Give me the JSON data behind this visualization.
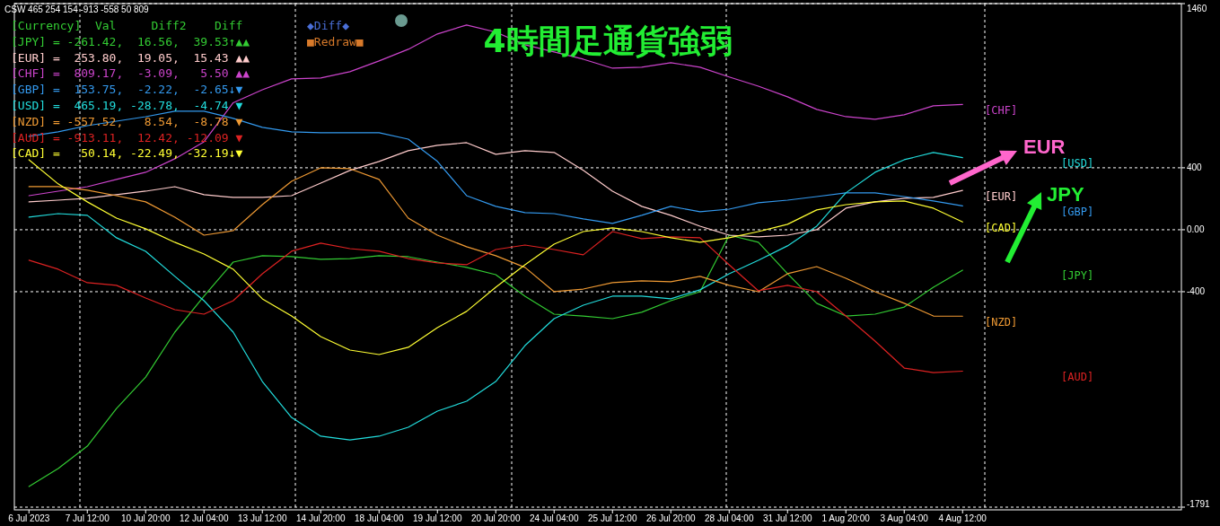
{
  "chart_data": {
    "type": "line",
    "title": "4時間足通貨強弱",
    "categories": [
      "6 Jul 2023",
      null,
      "7 Jul 12:00",
      null,
      "10 Jul 20:00",
      null,
      "12 Jul 04:00",
      null,
      "13 Jul 12:00",
      null,
      "14 Jul 20:00",
      null,
      "18 Jul 04:00",
      null,
      "19 Jul 12:00",
      null,
      "20 Jul 20:00",
      null,
      "24 Jul 04:00",
      null,
      "25 Jul 12:00",
      null,
      "26 Jul 20:00",
      null,
      "28 Jul 04:00",
      null,
      "31 Jul 12:00",
      null,
      "1 Aug 20:00",
      null,
      "3 Aug 04:00",
      null,
      "4 Aug 12:00",
      null,
      null,
      null,
      null,
      null,
      null,
      null
    ],
    "series": [
      {
        "name": "[JPY]",
        "color": "#33cc33",
        "values": [
          -1658,
          -1542,
          -1397,
          -1154,
          -951,
          -661,
          -429,
          -209,
          -168,
          -174,
          -191,
          -186,
          -168,
          -174,
          -209,
          -243,
          -290,
          -429,
          -545,
          -557,
          -574,
          -533,
          -458,
          -400,
          -35,
          -81,
          -284,
          -475,
          -557,
          -545,
          -499,
          -371,
          -261,
          null,
          null,
          null,
          null,
          null,
          null,
          null
        ]
      },
      {
        "name": "[EUR]",
        "color": "#ffcccc",
        "values": [
          180,
          191,
          203,
          226,
          249,
          278,
          226,
          209,
          209,
          220,
          301,
          383,
          441,
          510,
          545,
          562,
          487,
          510,
          499,
          383,
          249,
          151,
          93,
          23,
          -35,
          -46,
          -35,
          0,
          139,
          180,
          203,
          209,
          254,
          null,
          null,
          null,
          null,
          null,
          null,
          null
        ]
      },
      {
        "name": "[CHF]",
        "color": "#cc44cc",
        "values": [
          220,
          249,
          278,
          325,
          371,
          458,
          568,
          820,
          904,
          974,
          980,
          1020,
          1090,
          1165,
          1264,
          1322,
          1276,
          1194,
          1148,
          1101,
          1043,
          1049,
          1078,
          1049,
          986,
          927,
          858,
          777,
          730,
          713,
          742,
          800,
          809,
          null,
          null,
          null,
          null,
          null,
          null,
          null
        ]
      },
      {
        "name": "[GBP]",
        "color": "#3399ee",
        "values": [
          603,
          632,
          672,
          701,
          730,
          765,
          765,
          719,
          661,
          632,
          626,
          626,
          626,
          585,
          441,
          220,
          151,
          110,
          104,
          70,
          41,
          93,
          151,
          116,
          133,
          174,
          191,
          214,
          238,
          238,
          214,
          186,
          154,
          null,
          null,
          null,
          null,
          null,
          null,
          null
        ]
      },
      {
        "name": "[USD]",
        "color": "#22dddd",
        "values": [
          81,
          104,
          93,
          -52,
          -139,
          -301,
          -458,
          -661,
          -980,
          -1212,
          -1333,
          -1357,
          -1333,
          -1275,
          -1171,
          -1107,
          -980,
          -748,
          -574,
          -487,
          -429,
          -429,
          -446,
          -388,
          -284,
          -197,
          -104,
          23,
          238,
          371,
          452,
          499,
          465,
          null,
          null,
          null,
          null,
          null,
          null,
          null
        ]
      },
      {
        "name": "[NZD]",
        "color": "#ee9933",
        "values": [
          278,
          278,
          255,
          220,
          180,
          81,
          -35,
          -6,
          162,
          313,
          400,
          394,
          325,
          75,
          -35,
          -110,
          -168,
          -243,
          -400,
          -383,
          -342,
          -330,
          -336,
          -301,
          -359,
          -400,
          -284,
          -238,
          -313,
          -400,
          -475,
          -557,
          -558,
          null,
          null,
          null,
          null,
          null,
          null,
          null
        ]
      },
      {
        "name": "[AUD]",
        "color": "#dd2222",
        "values": [
          -197,
          -255,
          -342,
          -359,
          -441,
          -516,
          -545,
          -458,
          -284,
          -139,
          -87,
          -122,
          -139,
          -186,
          -214,
          -226,
          -128,
          -99,
          -128,
          -162,
          -12,
          -58,
          -46,
          -52,
          -226,
          -394,
          -359,
          -400,
          -557,
          -719,
          -893,
          -922,
          -913,
          null,
          null,
          null,
          null,
          null,
          null,
          null
        ]
      },
      {
        "name": "[CAD]",
        "color": "#ffff33",
        "values": [
          452,
          296,
          180,
          75,
          6,
          -81,
          -157,
          -255,
          -446,
          -557,
          -690,
          -777,
          -806,
          -759,
          -632,
          -527,
          -371,
          -226,
          -93,
          -12,
          12,
          -12,
          -52,
          -81,
          -52,
          -12,
          35,
          128,
          162,
          180,
          186,
          139,
          50,
          null,
          null,
          null,
          null,
          null,
          null,
          null
        ]
      }
    ],
    "ylim": [
      -1791,
      1460
    ],
    "yticks": [
      1460,
      400,
      {
        "value": 0,
        "label": "0.00"
      },
      -400,
      -1791
    ],
    "grid": true,
    "annotations": [
      "CSW 465 254 154 -913 -558 50 809",
      "[Currency]  Val     Diff2    Diff",
      "[JPY] = -261.42,  16.56,  39.53↑▲▲",
      "[EUR] =  253.80,  19.05,  15.43 ▲▲",
      "[CHF] =  809.17,  -3.09,   5.50 ▲▲",
      "[GBP] =  153.75,  -2.22,  -2.65↓▼",
      "[USD] =  465.19, -28.78,  -4.74 ▼",
      "[NZD] = -557.52,   8.54,  -8.78 ▼",
      "[AUD] = -913.11,  12.42, -12.09 ▼",
      "[CAD] =   50.14, -22.49, -32.19↓▼",
      "◆Diff◆",
      "■Redraw■",
      "EUR",
      "JPY"
    ]
  }
}
